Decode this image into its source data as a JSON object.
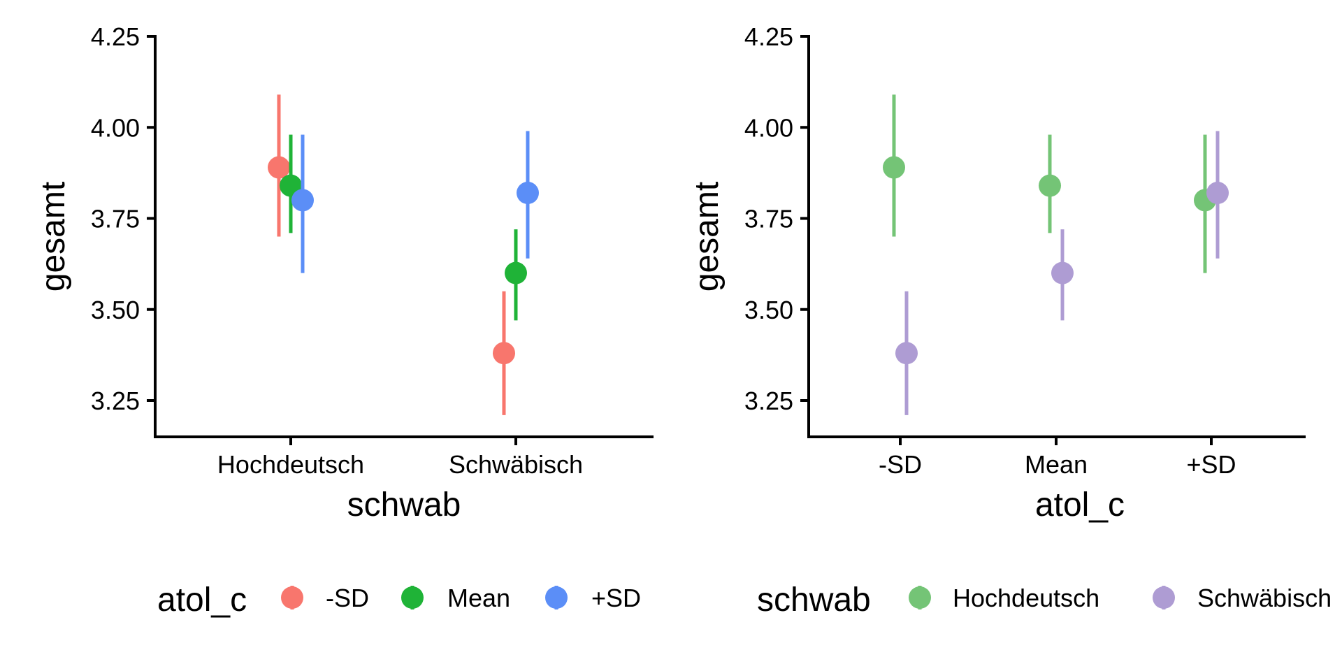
{
  "chart_data": [
    {
      "type": "scatter",
      "xlabel": "schwab",
      "ylabel": "gesamt",
      "categories": [
        "Hochdeutsch",
        "Schwäbisch"
      ],
      "ylim": [
        3.15,
        4.25
      ],
      "yticks": [
        "3.25",
        "3.50",
        "3.75",
        "4.00",
        "4.25"
      ],
      "grid": false,
      "legend": {
        "title": "atol_c",
        "placement": "bottom",
        "entries": [
          "-SD",
          "Mean",
          "+SD"
        ]
      },
      "series": [
        {
          "name": "-SD",
          "color": "#F8766D",
          "points": [
            {
              "category": "Hochdeutsch",
              "y": 3.89,
              "low": 3.7,
              "high": 4.09
            },
            {
              "category": "Schwäbisch",
              "y": 3.38,
              "low": 3.21,
              "high": 3.55
            }
          ]
        },
        {
          "name": "Mean",
          "color": "#1FB337",
          "points": [
            {
              "category": "Hochdeutsch",
              "y": 3.84,
              "low": 3.71,
              "high": 3.98
            },
            {
              "category": "Schwäbisch",
              "y": 3.6,
              "low": 3.47,
              "high": 3.72
            }
          ]
        },
        {
          "name": "+SD",
          "color": "#5B8EF7",
          "points": [
            {
              "category": "Hochdeutsch",
              "y": 3.8,
              "low": 3.6,
              "high": 3.98
            },
            {
              "category": "Schwäbisch",
              "y": 3.82,
              "low": 3.64,
              "high": 3.99
            }
          ]
        }
      ]
    },
    {
      "type": "scatter",
      "xlabel": "atol_c",
      "ylabel": "gesamt",
      "categories": [
        "-SD",
        "Mean",
        "+SD"
      ],
      "ylim": [
        3.15,
        4.25
      ],
      "yticks": [
        "3.25",
        "3.50",
        "3.75",
        "4.00",
        "4.25"
      ],
      "grid": false,
      "legend": {
        "title": "schwab",
        "placement": "bottom",
        "entries": [
          "Hochdeutsch",
          "Schwäbisch"
        ]
      },
      "series": [
        {
          "name": "Hochdeutsch",
          "color": "#74C476",
          "points": [
            {
              "category": "-SD",
              "y": 3.89,
              "low": 3.7,
              "high": 4.09
            },
            {
              "category": "Mean",
              "y": 3.84,
              "low": 3.71,
              "high": 3.98
            },
            {
              "category": "+SD",
              "y": 3.8,
              "low": 3.6,
              "high": 3.98
            }
          ]
        },
        {
          "name": "Schwäbisch",
          "color": "#AE9CD3",
          "points": [
            {
              "category": "-SD",
              "y": 3.38,
              "low": 3.21,
              "high": 3.55
            },
            {
              "category": "Mean",
              "y": 3.6,
              "low": 3.47,
              "high": 3.72
            },
            {
              "category": "+SD",
              "y": 3.82,
              "low": 3.64,
              "high": 3.99
            }
          ]
        }
      ]
    }
  ]
}
